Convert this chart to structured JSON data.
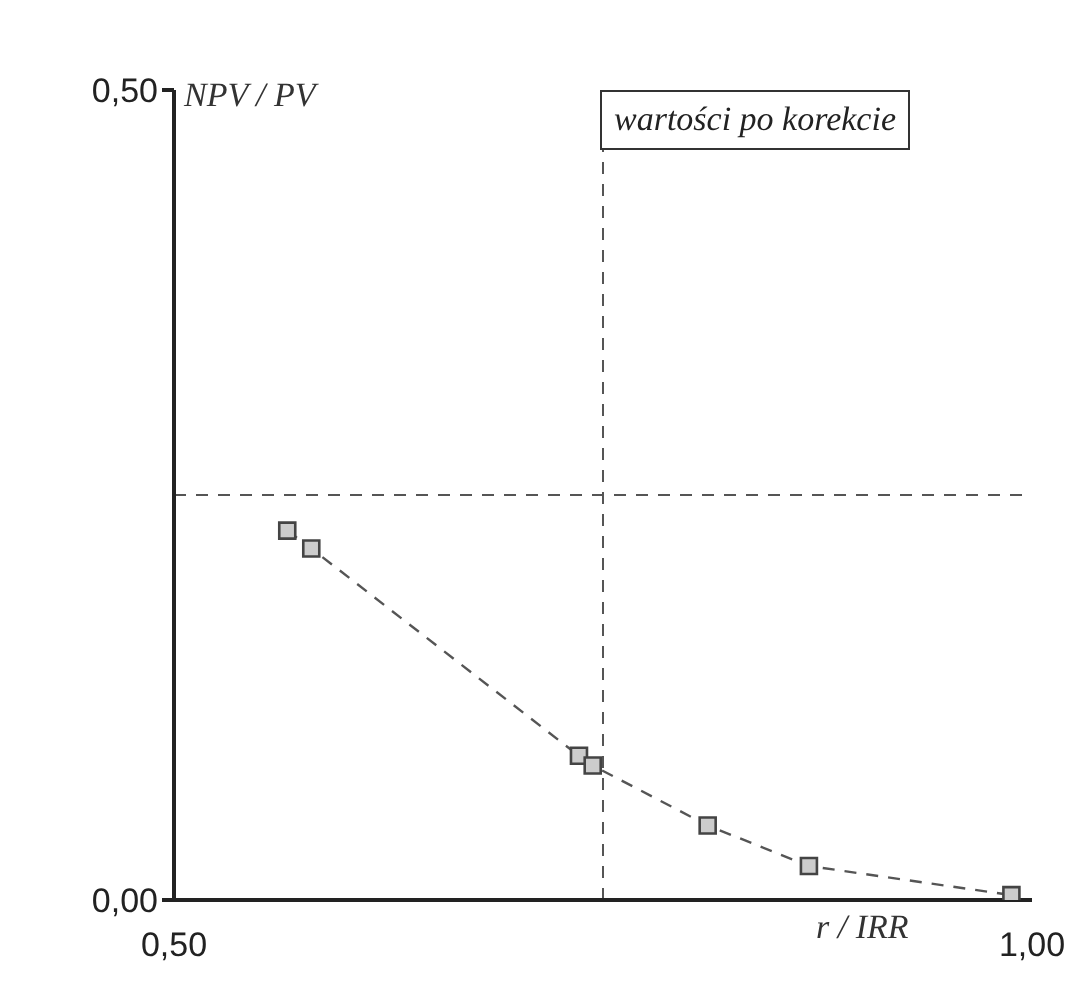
{
  "chart_data": {
    "type": "scatter",
    "title": "wartości po korekcie",
    "xlabel": "r / IRR",
    "ylabel": "NPV / PV",
    "xlim": [
      0.5,
      1.0
    ],
    "xticks": [
      {
        "value": 0.5,
        "label": "0,50"
      },
      {
        "value": 1.0,
        "label": "1,00"
      }
    ],
    "ylim": [
      0,
      0.5
    ],
    "yticks": [
      {
        "value": 0,
        "label": "0,00"
      },
      {
        "value": 0.5,
        "label": "0,50"
      }
    ],
    "ref_lines": [
      {
        "axis": "x",
        "value": 0.75,
        "line_style": "dashed",
        "color": "#555555"
      },
      {
        "axis": "y",
        "value": 0.25,
        "line_style": "dashed",
        "color": "#555555"
      }
    ],
    "series": [
      {
        "type": "line",
        "line_style": "dashed",
        "marker": "none",
        "color": "#555555",
        "x": [
          0.566,
          0.58,
          0.736,
          0.744,
          0.811,
          0.87,
          0.988
        ],
        "values": [
          0.228,
          0.217,
          0.089,
          0.083,
          0.046,
          0.021,
          0.003
        ]
      },
      {
        "marker": "square",
        "color": "#444444",
        "x": [
          0.566,
          0.58,
          0.736,
          0.744,
          0.811,
          0.87,
          0.988
        ],
        "values": [
          0.228,
          0.217,
          0.089,
          0.083,
          0.046,
          0.021,
          0.003
        ]
      }
    ]
  }
}
